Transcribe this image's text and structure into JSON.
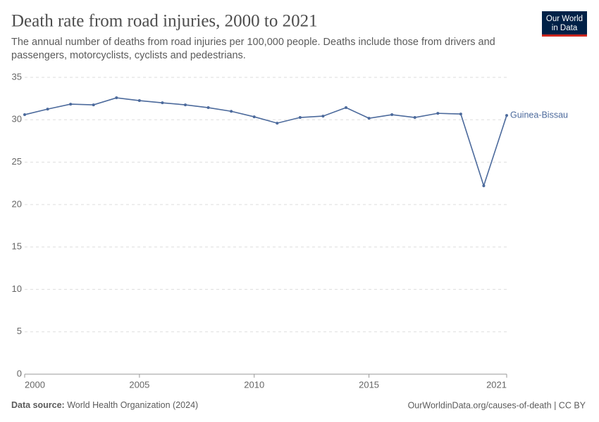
{
  "chart_data": {
    "type": "line",
    "title": "Death rate from road injuries, 2000 to 2021",
    "subtitle": "The annual number of deaths from road injuries per 100,000 people. Deaths include those from drivers and passengers, motorcyclists, cyclists and pedestrians.",
    "x": [
      2000,
      2001,
      2002,
      2003,
      2004,
      2005,
      2006,
      2007,
      2008,
      2009,
      2010,
      2011,
      2012,
      2013,
      2014,
      2015,
      2016,
      2017,
      2018,
      2019,
      2020,
      2021
    ],
    "series": [
      {
        "name": "Guinea-Bissau",
        "color": "#4c6a9c",
        "values": [
          30.6,
          31.26,
          31.84,
          31.76,
          32.59,
          32.26,
          32.0,
          31.76,
          31.43,
          31.0,
          30.35,
          29.6,
          30.27,
          30.43,
          31.43,
          30.18,
          30.6,
          30.27,
          30.76,
          30.68,
          22.22,
          30.51
        ]
      }
    ],
    "xlim": [
      2000,
      2021
    ],
    "xticks": [
      2000,
      2005,
      2010,
      2015,
      2021
    ],
    "ylim": [
      0,
      35
    ],
    "yticks": [
      0,
      5,
      10,
      15,
      20,
      25,
      30,
      35
    ],
    "grid": true
  },
  "logo": {
    "line1": "Our World",
    "line2": "in Data"
  },
  "footer": {
    "source_label": "Data source:",
    "source": "World Health Organization (2024)",
    "url": "OurWorldinData.org/causes-of-death | CC BY"
  }
}
